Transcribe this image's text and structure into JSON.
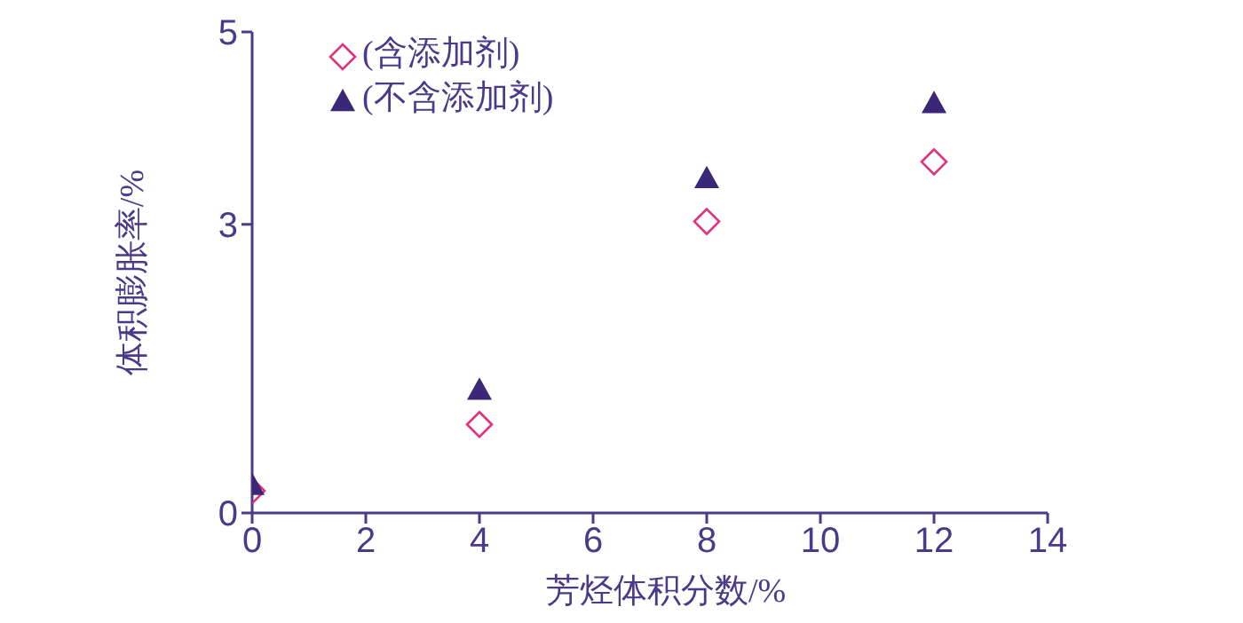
{
  "chart_data": {
    "type": "scatter",
    "xlabel": "芳烃体积分数/%",
    "ylabel": "体积膨胀率/%",
    "xlim": [
      0,
      14
    ],
    "xticks": [
      0,
      2,
      4,
      6,
      8,
      10,
      12,
      14
    ],
    "ylim": [
      0,
      5
    ],
    "yticks": [
      0,
      3,
      5
    ],
    "x": [
      0,
      4,
      8,
      12
    ],
    "series": [
      {
        "name": "(含添加剂)",
        "color": "#e2307a",
        "marker": "diamond",
        "values": [
          0.23,
          0.92,
          3.03,
          3.65
        ]
      },
      {
        "name": "(不含添加剂)",
        "color": "#3b2777",
        "marker": "triangle",
        "values": [
          0.29,
          1.28,
          3.48,
          4.26
        ]
      }
    ],
    "legend": "top left",
    "grid": false
  }
}
